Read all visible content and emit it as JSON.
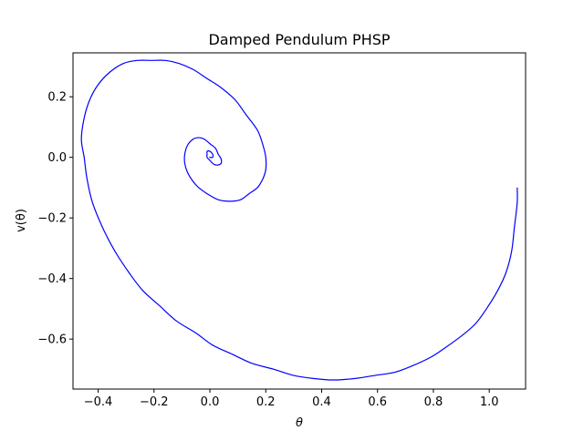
{
  "chart_data": {
    "type": "line",
    "title": "Damped Pendulum PHSP",
    "xlabel": "θ",
    "ylabel": "v(θ)",
    "xlim": [
      -0.49,
      1.13
    ],
    "ylim": [
      -0.765,
      0.345
    ],
    "x_ticks": [
      -0.4,
      -0.2,
      0.0,
      0.2,
      0.4,
      0.6,
      0.8,
      1.0
    ],
    "x_tick_labels": [
      "−0.4",
      "−0.2",
      "0.0",
      "0.2",
      "0.4",
      "0.6",
      "0.8",
      "1.0"
    ],
    "y_ticks": [
      -0.6,
      -0.4,
      -0.2,
      0.0,
      0.2
    ],
    "y_tick_labels": [
      "−0.6",
      "−0.4",
      "−0.2",
      "0.0",
      "0.2"
    ],
    "grid": false,
    "legend": "none",
    "series": [
      {
        "color": "#0000ff",
        "x": [
          1.1,
          1.1,
          1.09,
          1.08,
          1.06,
          1.03,
          0.99,
          0.95,
          0.9,
          0.84,
          0.79,
          0.72,
          0.66,
          0.59,
          0.52,
          0.44,
          0.37,
          0.3,
          0.23,
          0.15,
          0.08,
          0.01,
          -0.05,
          -0.12,
          -0.18,
          -0.24,
          -0.29,
          -0.34,
          -0.38,
          -0.42,
          -0.44,
          -0.45,
          -0.46,
          -0.45,
          -0.43,
          -0.4,
          -0.36,
          -0.31,
          -0.26,
          -0.21,
          -0.16,
          -0.11,
          -0.06,
          -0.01,
          0.04,
          0.09,
          0.13,
          0.17,
          0.19,
          0.2,
          0.2,
          0.19,
          0.17,
          0.14,
          0.11,
          0.07,
          0.03,
          -0.01,
          -0.04,
          -0.06,
          -0.08,
          -0.09,
          -0.09,
          -0.08,
          -0.06,
          -0.04,
          -0.02,
          0.0,
          0.02,
          0.03,
          0.04,
          0.04,
          0.03,
          0.02,
          0.01,
          0.0,
          -0.01,
          -0.01,
          -0.01,
          0.0,
          0.01,
          0.01,
          0.0,
          0.0
        ],
        "y": [
          -0.1,
          -0.15,
          -0.23,
          -0.31,
          -0.38,
          -0.44,
          -0.5,
          -0.55,
          -0.59,
          -0.63,
          -0.66,
          -0.69,
          -0.71,
          -0.72,
          -0.73,
          -0.735,
          -0.73,
          -0.72,
          -0.7,
          -0.68,
          -0.65,
          -0.62,
          -0.58,
          -0.54,
          -0.49,
          -0.44,
          -0.38,
          -0.31,
          -0.24,
          -0.15,
          -0.07,
          0.0,
          0.06,
          0.13,
          0.19,
          0.24,
          0.28,
          0.31,
          0.32,
          0.32,
          0.32,
          0.31,
          0.29,
          0.26,
          0.23,
          0.19,
          0.14,
          0.09,
          0.04,
          0.0,
          -0.04,
          -0.07,
          -0.1,
          -0.12,
          -0.14,
          -0.145,
          -0.14,
          -0.12,
          -0.1,
          -0.08,
          -0.05,
          -0.02,
          0.01,
          0.04,
          0.06,
          0.065,
          0.06,
          0.045,
          0.03,
          0.01,
          -0.005,
          -0.02,
          -0.025,
          -0.025,
          -0.02,
          -0.01,
          0.0,
          0.01,
          0.02,
          0.02,
          0.01,
          0.0,
          0.0,
          0.0
        ]
      }
    ]
  }
}
